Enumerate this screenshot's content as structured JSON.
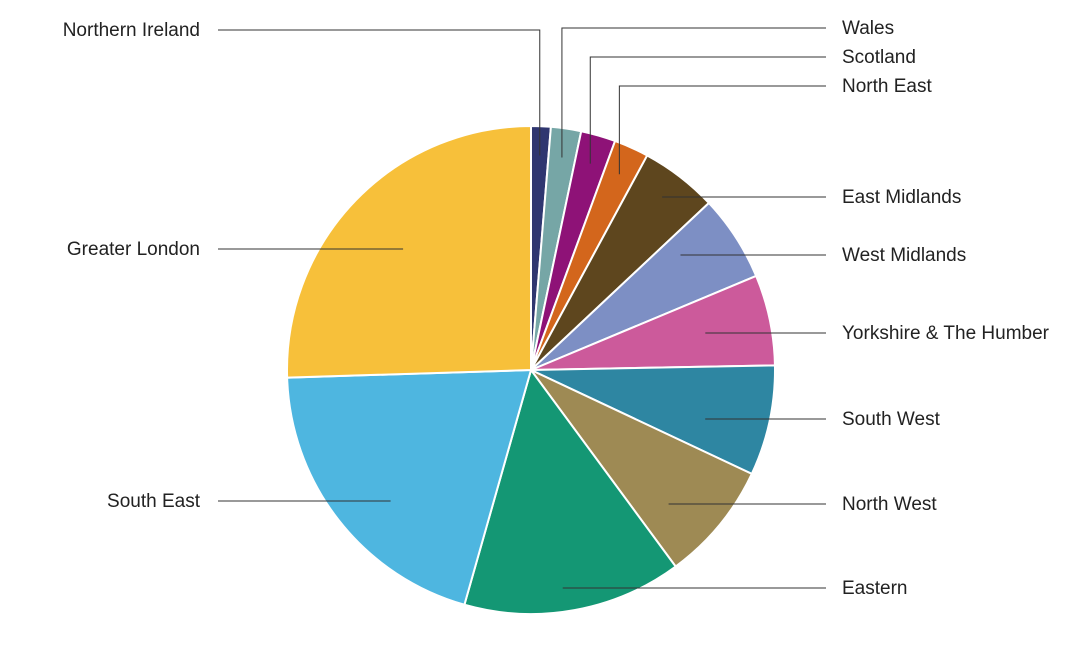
{
  "chart_data": {
    "type": "pie",
    "title": "",
    "start_angle_deg": 0,
    "direction": "clockwise",
    "slices": [
      {
        "label": "Northern Ireland",
        "value": 1.3,
        "color": "#2f3670",
        "side": "left",
        "label_row": 0
      },
      {
        "label": "Wales",
        "value": 2.0,
        "color": "#76a6a6",
        "side": "right",
        "label_row": 0
      },
      {
        "label": "Scotland",
        "value": 2.3,
        "color": "#8e1277",
        "side": "right",
        "label_row": 1
      },
      {
        "label": "North East",
        "value": 2.3,
        "color": "#d3661c",
        "side": "right",
        "label_row": 2
      },
      {
        "label": "East Midlands",
        "value": 5.1,
        "color": "#5e461e",
        "side": "right",
        "label_row": 3
      },
      {
        "label": "West Midlands",
        "value": 5.7,
        "color": "#7d8fc4",
        "side": "right",
        "label_row": 4
      },
      {
        "label": "Yorkshire & The Humber",
        "value": 6.0,
        "color": "#cc5a9b",
        "side": "right",
        "label_row": 5
      },
      {
        "label": "South West",
        "value": 7.3,
        "color": "#2e86a2",
        "side": "right",
        "label_row": 6
      },
      {
        "label": "North West",
        "value": 7.9,
        "color": "#9e8a54",
        "side": "right",
        "label_row": 7
      },
      {
        "label": "Eastern",
        "value": 14.5,
        "color": "#149774",
        "side": "right",
        "label_row": 8
      },
      {
        "label": "South East",
        "value": 20.1,
        "color": "#4eb6e0",
        "side": "left",
        "label_row": 2
      },
      {
        "label": "Greater London",
        "value": 25.5,
        "color": "#f7c03a",
        "side": "left",
        "label_row": 1
      }
    ]
  }
}
